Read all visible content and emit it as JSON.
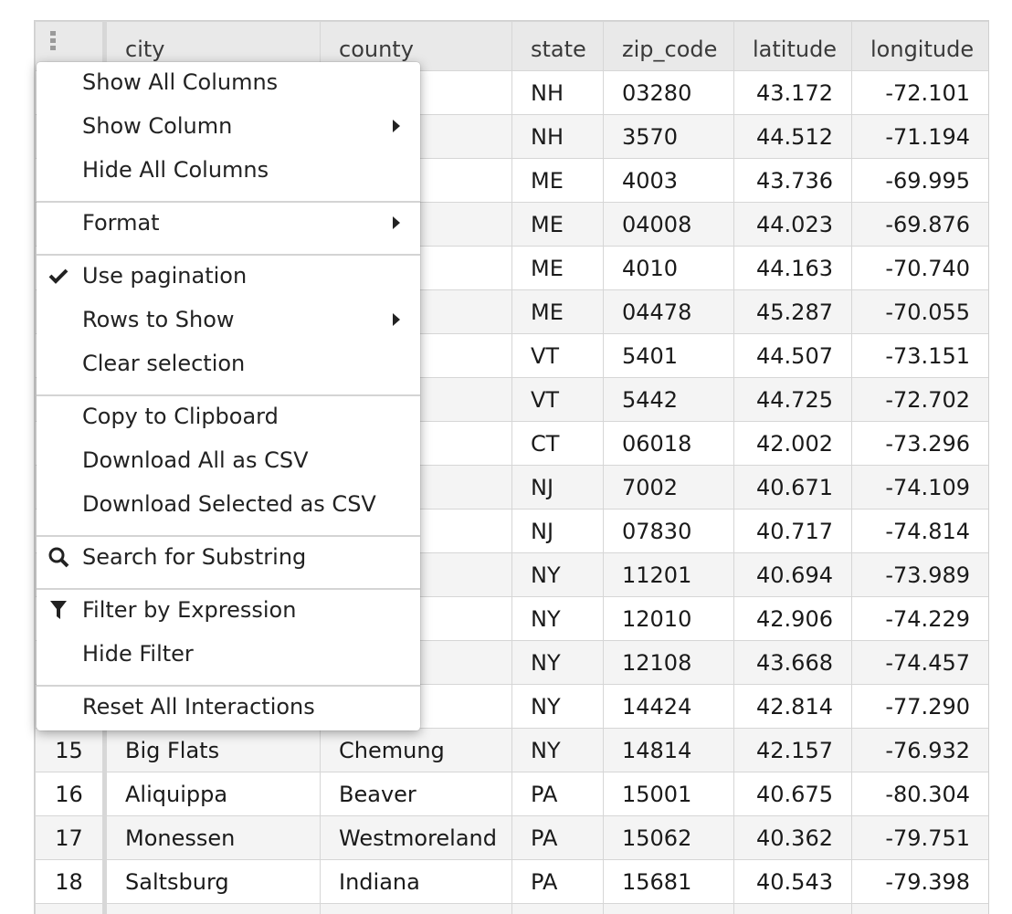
{
  "grid": {
    "columns": [
      "",
      "city",
      "county",
      "state",
      "zip_code",
      "latitude",
      "longitude"
    ],
    "rows": [
      [
        "",
        "",
        "",
        "NH",
        "03280",
        "43.172",
        "-72.101"
      ],
      [
        "",
        "",
        "",
        "NH",
        "3570",
        "44.512",
        "-71.194"
      ],
      [
        "",
        "",
        "land",
        "ME",
        "4003",
        "43.736",
        "-69.995"
      ],
      [
        "",
        "",
        "oc",
        "ME",
        "04008",
        "44.023",
        "-69.876"
      ],
      [
        "",
        "",
        "",
        "ME",
        "4010",
        "44.163",
        "-70.740"
      ],
      [
        "",
        "",
        "et",
        "ME",
        "04478",
        "45.287",
        "-70.055"
      ],
      [
        "",
        "",
        "den",
        "VT",
        "5401",
        "44.507",
        "-73.151"
      ],
      [
        "",
        "",
        "e",
        "VT",
        "5442",
        "44.725",
        "-72.702"
      ],
      [
        "",
        "",
        "d",
        "CT",
        "06018",
        "42.002",
        "-73.296"
      ],
      [
        "",
        "",
        "",
        "NJ",
        "7002",
        "40.671",
        "-74.109"
      ],
      [
        "",
        "",
        "lon",
        "NJ",
        "07830",
        "40.717",
        "-74.814"
      ],
      [
        "",
        "",
        "",
        "NY",
        "11201",
        "40.694",
        "-73.989"
      ],
      [
        "",
        "",
        "mery",
        "NY",
        "12010",
        "42.906",
        "-74.229"
      ],
      [
        "",
        "",
        "n",
        "NY",
        "12108",
        "43.668",
        "-74.457"
      ],
      [
        "",
        "",
        "",
        "NY",
        "14424",
        "42.814",
        "-77.290"
      ],
      [
        "15",
        "Big Flats",
        "Chemung",
        "NY",
        "14814",
        "42.157",
        "-76.932"
      ],
      [
        "16",
        "Aliquippa",
        "Beaver",
        "PA",
        "15001",
        "40.675",
        "-80.304"
      ],
      [
        "17",
        "Monessen",
        "Westmoreland",
        "PA",
        "15062",
        "40.362",
        "-79.751"
      ],
      [
        "18",
        "Saltsburg",
        "Indiana",
        "PA",
        "15681",
        "40.543",
        "-79.398"
      ],
      [
        "",
        "",
        "",
        "",
        "",
        "",
        ""
      ]
    ]
  },
  "menu": {
    "items": [
      {
        "label": "Show All Columns",
        "name": "menu-show-all-columns",
        "icon": "",
        "submenu": false
      },
      {
        "label": "Show Column",
        "name": "menu-show-column",
        "icon": "",
        "submenu": true
      },
      {
        "label": "Hide All Columns",
        "name": "menu-hide-all-columns",
        "icon": "",
        "submenu": false
      },
      {
        "label": "Format",
        "name": "menu-format",
        "icon": "",
        "submenu": true
      },
      {
        "label": "Use pagination",
        "name": "menu-use-pagination",
        "icon": "check-icon",
        "submenu": false
      },
      {
        "label": "Rows to Show",
        "name": "menu-rows-to-show",
        "icon": "",
        "submenu": true
      },
      {
        "label": "Clear selection",
        "name": "menu-clear-selection",
        "icon": "",
        "submenu": false
      },
      {
        "label": "Copy to Clipboard",
        "name": "menu-copy-to-clipboard",
        "icon": "",
        "submenu": false
      },
      {
        "label": "Download All as CSV",
        "name": "menu-download-all-csv",
        "icon": "",
        "submenu": false
      },
      {
        "label": "Download Selected as CSV",
        "name": "menu-download-selected-csv",
        "icon": "",
        "submenu": false
      },
      {
        "label": "Search for Substring",
        "name": "menu-search-substring",
        "icon": "search-icon",
        "submenu": false
      },
      {
        "label": "Filter by Expression",
        "name": "menu-filter-expression",
        "icon": "filter-icon",
        "submenu": false
      },
      {
        "label": "Hide Filter",
        "name": "menu-hide-filter",
        "icon": "",
        "submenu": false
      },
      {
        "label": "Reset All Interactions",
        "name": "menu-reset-interactions",
        "icon": "",
        "submenu": false
      }
    ]
  }
}
